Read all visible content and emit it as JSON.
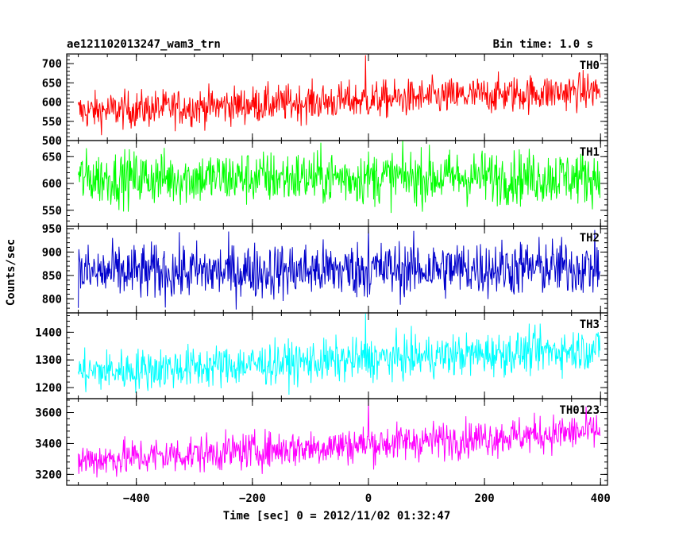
{
  "chart_data": {
    "type": "line",
    "title": "ae121102013247_wam3_trn",
    "bin_time": "Bin time: 1.0 s",
    "xlabel": "Time [sec] 0 = 2012/11/02 01:32:47",
    "ylabel": "Counts/sec",
    "xlim": [
      -520,
      412
    ],
    "x_data_range": [
      -500,
      399
    ],
    "x_ticks": [
      -400,
      -200,
      0,
      200,
      400
    ],
    "x_tick_labels": [
      "−400",
      "−200",
      "0",
      "200",
      "400"
    ],
    "panels": [
      {
        "name": "TH0",
        "color": "#ff0000",
        "ylim": [
          500,
          725
        ],
        "y_ticks": [
          500,
          550,
          600,
          650,
          700
        ],
        "y_tick_labels": [
          "500",
          "550",
          "600",
          "650",
          "700"
        ],
        "trend_start": 575,
        "trend_end": 630,
        "noise_sd": 24,
        "spikes": [
          [
            -5,
            722
          ]
        ]
      },
      {
        "name": "TH1",
        "color": "#00ff00",
        "ylim": [
          520,
          680
        ],
        "y_ticks": [
          550,
          600,
          650
        ],
        "y_tick_labels": [
          "550",
          "600",
          "650"
        ],
        "trend_start": 610,
        "trend_end": 612,
        "noise_sd": 25,
        "spikes": []
      },
      {
        "name": "TH2",
        "color": "#0000cc",
        "ylim": [
          770,
          955
        ],
        "y_ticks": [
          800,
          850,
          900,
          950
        ],
        "y_tick_labels": [
          "800",
          "850",
          "900",
          "950"
        ],
        "trend_start": 855,
        "trend_end": 868,
        "noise_sd": 30,
        "spikes": [
          [
            0,
            955
          ]
        ]
      },
      {
        "name": "TH3",
        "color": "#00ffff",
        "ylim": [
          1160,
          1470
        ],
        "y_ticks": [
          1200,
          1300,
          1400
        ],
        "y_tick_labels": [
          "1200",
          "1300",
          "1400"
        ],
        "trend_start": 1255,
        "trend_end": 1340,
        "noise_sd": 38,
        "spikes": [
          [
            -5,
            1468
          ]
        ]
      },
      {
        "name": "TH0123",
        "color": "#ff00ff",
        "ylim": [
          3130,
          3690
        ],
        "y_ticks": [
          3200,
          3400,
          3600
        ],
        "y_tick_labels": [
          "3200",
          "3400",
          "3600"
        ],
        "trend_start": 3290,
        "trend_end": 3480,
        "noise_sd": 60,
        "spikes": [
          [
            0,
            3690
          ]
        ]
      }
    ]
  }
}
